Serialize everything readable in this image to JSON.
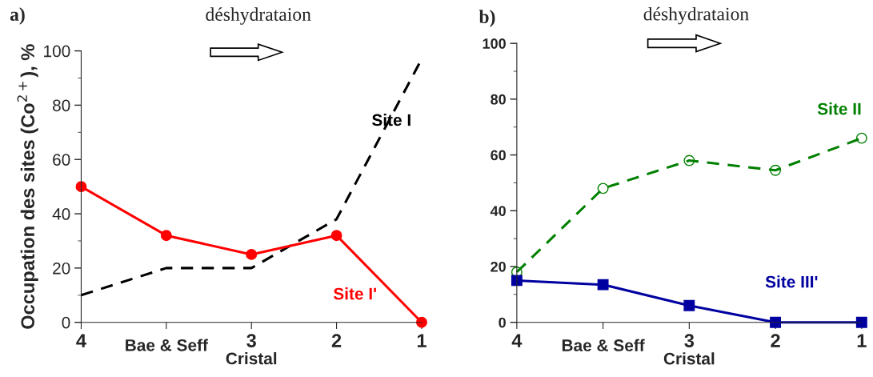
{
  "chart_data": [
    {
      "type": "line",
      "xlabel": "Cristal",
      "ylabel": "Occupation des sites (Co$^{2+}$), %",
      "categories": [
        "4",
        "Bae & Seff",
        "3",
        "2",
        "1"
      ],
      "ylim": [
        0,
        100
      ],
      "yticks": [
        0,
        20,
        40,
        60,
        80,
        100
      ],
      "grid": false,
      "legend": false,
      "annotations": [
        "a)",
        "déshydrataion"
      ],
      "series": [
        {
          "name": "Site I",
          "color": "#000000",
          "values": [
            10,
            20,
            20,
            38,
            97
          ],
          "line_style": "dashed",
          "marker": "none"
        },
        {
          "name": "Site I'",
          "color": "#ff0000",
          "values": [
            50,
            32,
            25,
            32,
            0
          ],
          "line_style": "solid",
          "marker": "circle"
        }
      ]
    },
    {
      "type": "line",
      "xlabel": "Cristal",
      "categories": [
        "4",
        "Bae & Seff",
        "3",
        "2",
        "1"
      ],
      "ylim": [
        0,
        100
      ],
      "yticks": [
        0,
        20,
        40,
        60,
        80,
        100
      ],
      "grid": false,
      "legend": false,
      "annotations": [
        "b)",
        "déshydrataion"
      ],
      "series": [
        {
          "name": "Site II",
          "color": "#008000",
          "values": [
            18,
            48,
            58,
            54.5,
            66
          ],
          "line_style": "dashed",
          "marker": "circle"
        },
        {
          "name": "Site III'",
          "color": "#0000a0",
          "values": [
            15,
            13.5,
            6,
            0,
            0
          ],
          "line_style": "solid",
          "marker": "square"
        }
      ]
    }
  ]
}
